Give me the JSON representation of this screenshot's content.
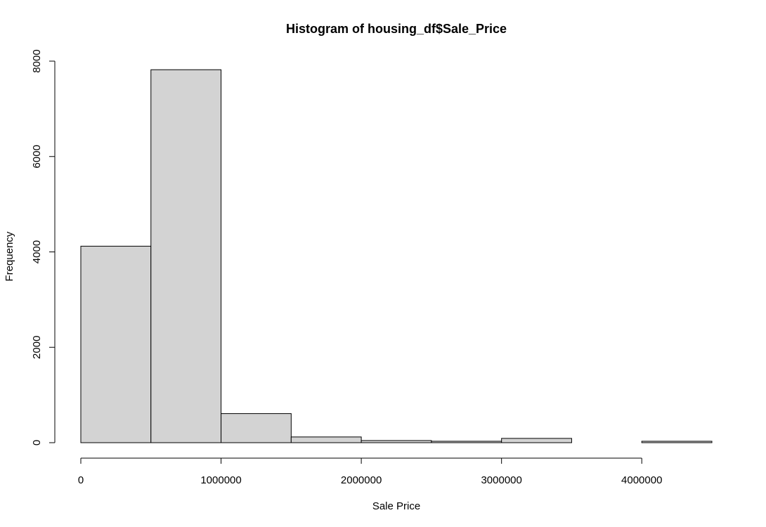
{
  "chart_data": {
    "type": "bar",
    "title": "Histogram of housing_df$Sale_Price",
    "xlabel": "Sale Price",
    "ylabel": "Frequency",
    "xlim": [
      0,
      4500000
    ],
    "ylim": [
      0,
      8000
    ],
    "x_ticks": [
      0,
      1000000,
      2000000,
      3000000,
      4000000
    ],
    "x_tick_labels": [
      "0",
      "1000000",
      "2000000",
      "3000000",
      "4000000"
    ],
    "y_ticks": [
      0,
      2000,
      4000,
      6000,
      8000
    ],
    "y_tick_labels": [
      "0",
      "2000",
      "4000",
      "6000",
      "8000"
    ],
    "bins": [
      {
        "start": 0,
        "end": 500000,
        "count": 4120
      },
      {
        "start": 500000,
        "end": 1000000,
        "count": 7820
      },
      {
        "start": 1000000,
        "end": 1500000,
        "count": 610
      },
      {
        "start": 1500000,
        "end": 2000000,
        "count": 120
      },
      {
        "start": 2000000,
        "end": 2500000,
        "count": 45
      },
      {
        "start": 2500000,
        "end": 3000000,
        "count": 30
      },
      {
        "start": 3000000,
        "end": 3500000,
        "count": 90
      },
      {
        "start": 3500000,
        "end": 4000000,
        "count": 0
      },
      {
        "start": 4000000,
        "end": 4500000,
        "count": 30
      }
    ],
    "grid": false,
    "bar_color": "#d3d3d3",
    "edge_color": "#000000"
  }
}
